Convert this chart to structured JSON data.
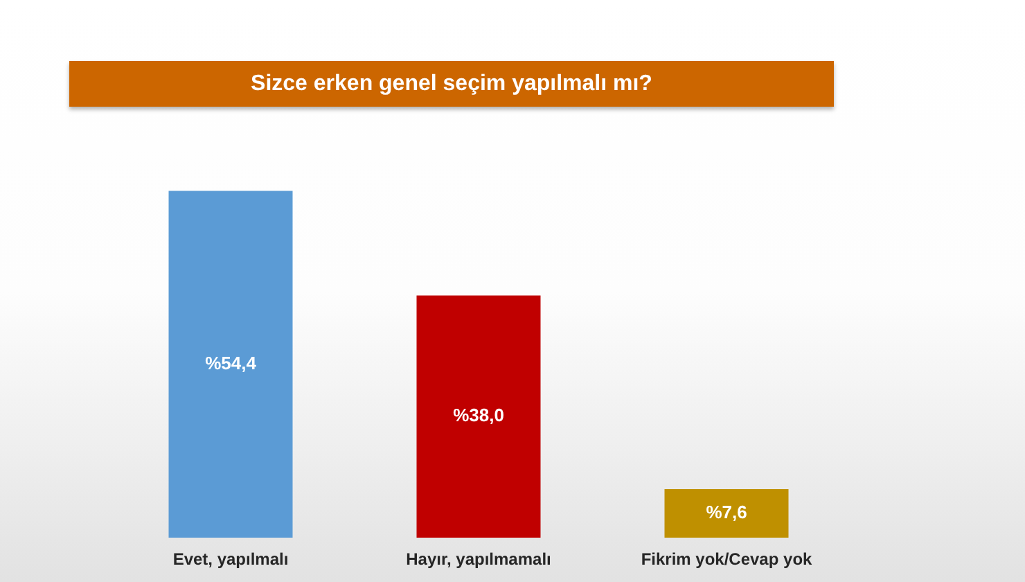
{
  "chart_data": {
    "type": "bar",
    "title": "Sizce erken genel seçim yapılmalı mı?",
    "categories": [
      "Evet, yapılmalı",
      "Hayır, yapılmamalı",
      "Fikrim yok/Cevap yok"
    ],
    "values": [
      54.4,
      38.0,
      7.6
    ],
    "colors": [
      "#5b9bd5",
      "#c00000",
      "#bf9000"
    ],
    "value_labels": [
      "%54,4",
      "%38,0",
      "%7,6"
    ]
  }
}
